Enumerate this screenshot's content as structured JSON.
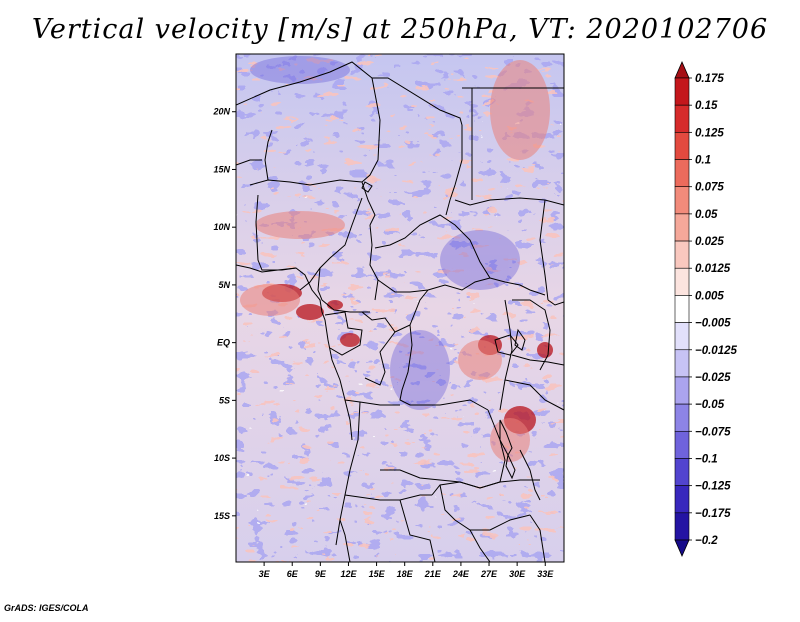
{
  "title": "Vertical velocity [m/s] at 250hPa, VT: 2020102706",
  "credit": "GrADS: IGES/COLA",
  "map": {
    "lon_range": [
      0,
      35
    ],
    "lat_range": [
      -19,
      25
    ],
    "lat_labels": [
      "20N",
      "15N",
      "10N",
      "5N",
      "EQ",
      "5S",
      "10S",
      "15S"
    ],
    "lat_values": [
      20,
      15,
      10,
      5,
      0,
      -5,
      -10,
      -15
    ],
    "lon_labels": [
      "3E",
      "6E",
      "9E",
      "12E",
      "15E",
      "18E",
      "21E",
      "24E",
      "27E",
      "30E",
      "33E"
    ],
    "lon_values": [
      3,
      6,
      9,
      12,
      15,
      18,
      21,
      24,
      27,
      30,
      33
    ]
  },
  "colorbar": {
    "labels": [
      "0.175",
      "0.15",
      "0.125",
      "0.1",
      "0.075",
      "0.05",
      "0.025",
      "0.0125",
      "0.005",
      "−0.005",
      "−0.0125",
      "−0.025",
      "−0.05",
      "−0.075",
      "−0.1",
      "−0.125",
      "−0.175",
      "−0.2"
    ],
    "colors": [
      "#a50f15",
      "#c4171c",
      "#d62b2b",
      "#e34a3f",
      "#ec6b5c",
      "#f28b7b",
      "#f5a89a",
      "#f9c8bf",
      "#fce4df",
      "#ffffff",
      "#e2e0fb",
      "#c7c3f5",
      "#aba4ef",
      "#8d84e6",
      "#6f63dc",
      "#5244cf",
      "#3827bd",
      "#2414a3",
      "#160b8a"
    ]
  }
}
